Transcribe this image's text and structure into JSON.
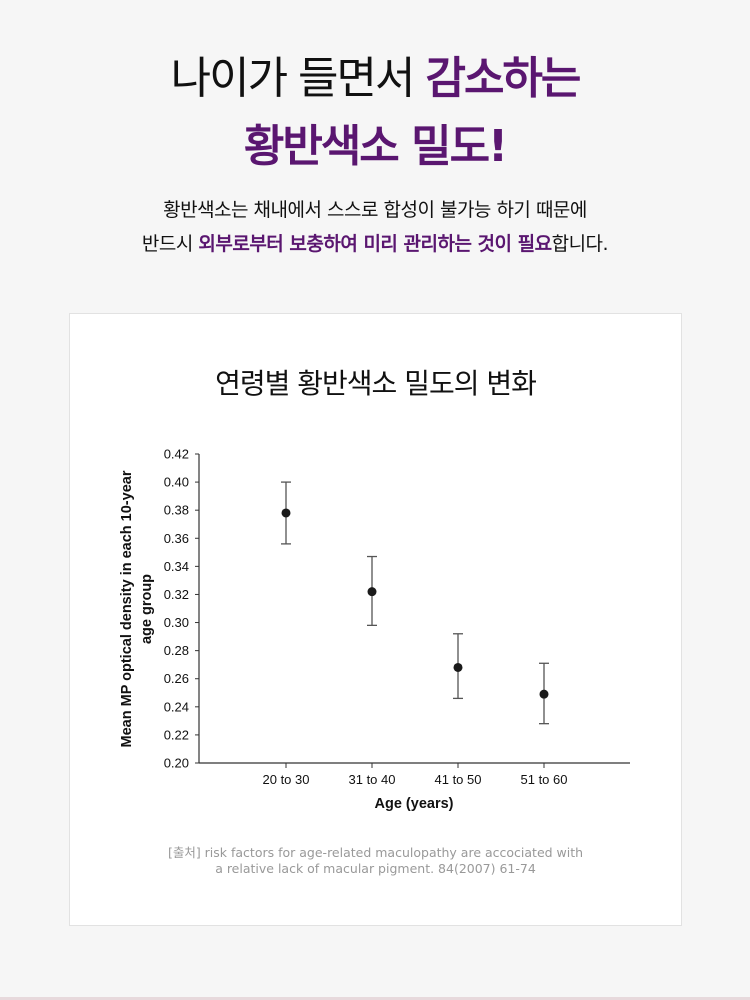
{
  "headline": {
    "line1_normal": "나이가 들면서 ",
    "line1_accent": "감소하는",
    "line2": "황반색소 밀도!"
  },
  "subtext": {
    "line1": "황반색소는 채내에서 스스로 합성이 불가능 하기 때문에",
    "line2_pre": "반드시 ",
    "line2_bold": "외부로부터 보충하여 미리 관리하는 것이 필요",
    "line2_post": "합니다."
  },
  "colors": {
    "accent": "#5a1670",
    "marker": "#1a1a1a"
  },
  "chart_data": {
    "type": "scatter",
    "title": "연령별 황반색소 밀도의 변화",
    "xlabel": "Age (years)",
    "ylabel_line1": "Mean MP optical density in each 10-year",
    "ylabel_line2": "age group",
    "categories": [
      "20 to 30",
      "31 to 40",
      "41 to 50",
      "51 to 60"
    ],
    "values": [
      0.378,
      0.322,
      0.268,
      0.249
    ],
    "error_low": [
      0.356,
      0.298,
      0.246,
      0.228
    ],
    "error_high": [
      0.4,
      0.347,
      0.292,
      0.271
    ],
    "ylim": [
      0.2,
      0.42
    ],
    "yticks": [
      "0.20",
      "0.22",
      "0.24",
      "0.26",
      "0.28",
      "0.30",
      "0.32",
      "0.34",
      "0.36",
      "0.38",
      "0.40",
      "0.42"
    ],
    "grid": false
  },
  "source": {
    "line1": "[출처] risk factors for age-related maculopathy are accociated with",
    "line2": "a relative lack of macular pigment. 84(2007) 61-74"
  }
}
